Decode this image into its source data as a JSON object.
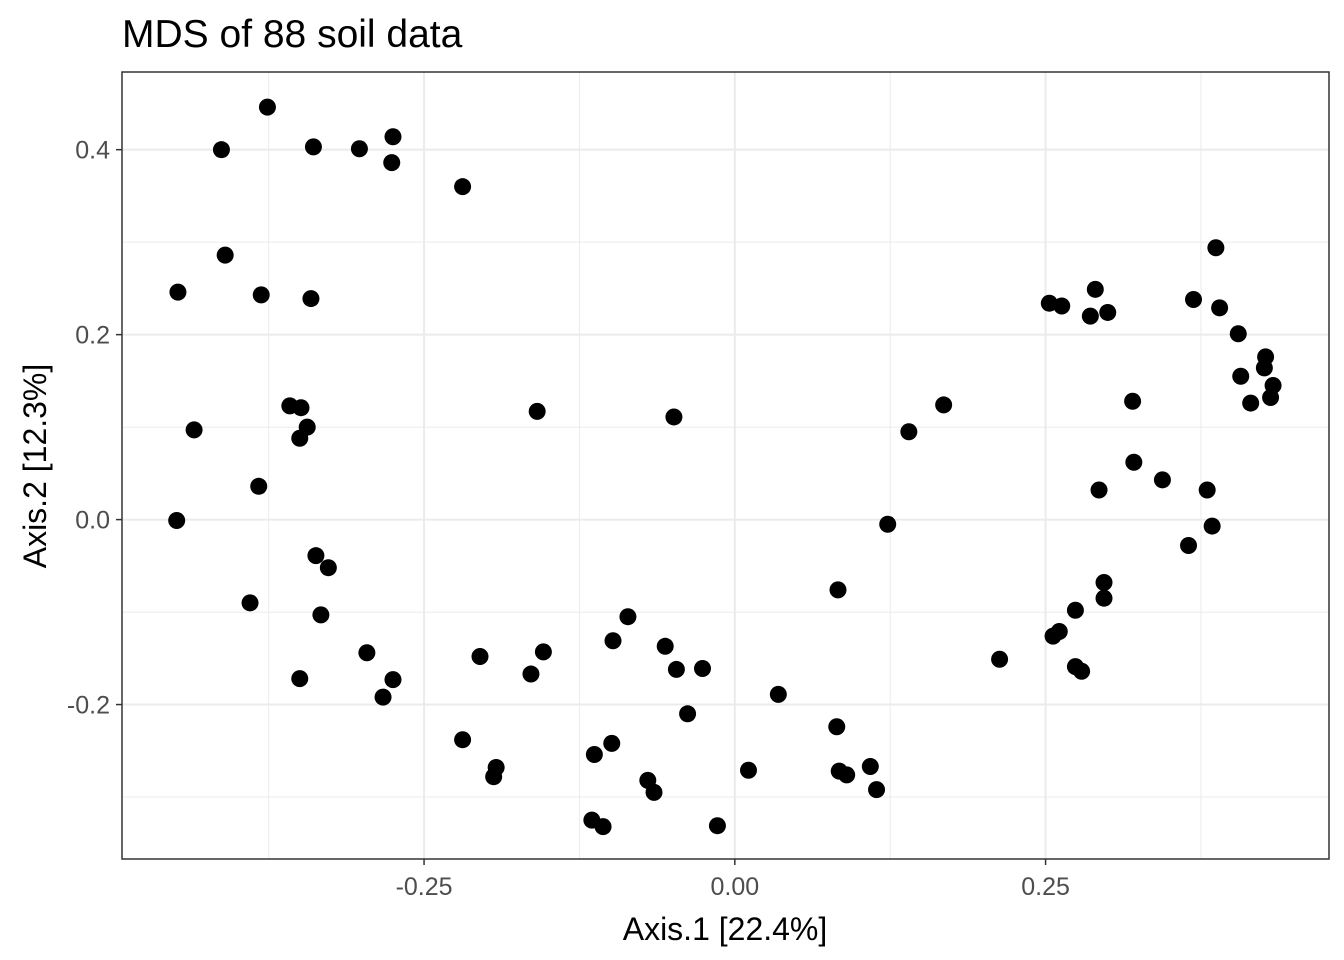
{
  "chart_data": {
    "type": "scatter",
    "title": "MDS of 88 soil data",
    "xlabel": "Axis.1   [22.4%]",
    "ylabel": "Axis.2   [12.3%]",
    "xlim": [
      -0.493,
      0.478
    ],
    "ylim": [
      -0.367,
      0.484
    ],
    "x_ticks": [
      -0.25,
      0.0,
      0.25
    ],
    "x_tick_labels": [
      "-0.25",
      "0.00",
      "0.25"
    ],
    "y_ticks": [
      -0.2,
      0.0,
      0.2,
      0.4
    ],
    "y_tick_labels": [
      "-0.2",
      "0.0",
      "0.2",
      "0.4"
    ],
    "x_minor_grid": [
      -0.375,
      -0.125,
      0.125,
      0.375
    ],
    "y_minor_grid": [
      -0.3,
      -0.1,
      0.1,
      0.3
    ],
    "grid": true,
    "legend": "none",
    "colors": {
      "points": "#000000",
      "grid": "#ebebeb",
      "panel_border": "#333333",
      "tick_label": "#4d4d4d"
    },
    "points": [
      {
        "x": -0.376,
        "y": 0.446
      },
      {
        "x": -0.413,
        "y": 0.4
      },
      {
        "x": -0.339,
        "y": 0.403
      },
      {
        "x": -0.302,
        "y": 0.401
      },
      {
        "x": -0.275,
        "y": 0.414
      },
      {
        "x": -0.276,
        "y": 0.386
      },
      {
        "x": -0.219,
        "y": 0.36
      },
      {
        "x": -0.41,
        "y": 0.286
      },
      {
        "x": -0.448,
        "y": 0.246
      },
      {
        "x": -0.381,
        "y": 0.243
      },
      {
        "x": -0.341,
        "y": 0.239
      },
      {
        "x": -0.358,
        "y": 0.123
      },
      {
        "x": -0.349,
        "y": 0.121
      },
      {
        "x": -0.344,
        "y": 0.1
      },
      {
        "x": -0.35,
        "y": 0.088
      },
      {
        "x": -0.435,
        "y": 0.097
      },
      {
        "x": -0.383,
        "y": 0.036
      },
      {
        "x": -0.449,
        "y": -0.001
      },
      {
        "x": -0.337,
        "y": -0.039
      },
      {
        "x": -0.327,
        "y": -0.052
      },
      {
        "x": -0.39,
        "y": -0.09
      },
      {
        "x": -0.333,
        "y": -0.103
      },
      {
        "x": -0.296,
        "y": -0.144
      },
      {
        "x": -0.35,
        "y": -0.172
      },
      {
        "x": -0.275,
        "y": -0.173
      },
      {
        "x": -0.283,
        "y": -0.192
      },
      {
        "x": -0.219,
        "y": -0.238
      },
      {
        "x": -0.205,
        "y": -0.148
      },
      {
        "x": -0.192,
        "y": -0.268
      },
      {
        "x": -0.194,
        "y": -0.278
      },
      {
        "x": -0.159,
        "y": 0.117
      },
      {
        "x": -0.154,
        "y": -0.143
      },
      {
        "x": -0.164,
        "y": -0.167
      },
      {
        "x": -0.113,
        "y": -0.254
      },
      {
        "x": -0.099,
        "y": -0.242
      },
      {
        "x": -0.098,
        "y": -0.131
      },
      {
        "x": -0.086,
        "y": -0.105
      },
      {
        "x": -0.115,
        "y": -0.325
      },
      {
        "x": -0.106,
        "y": -0.332
      },
      {
        "x": -0.07,
        "y": -0.282
      },
      {
        "x": -0.065,
        "y": -0.295
      },
      {
        "x": -0.056,
        "y": -0.137
      },
      {
        "x": -0.047,
        "y": -0.162
      },
      {
        "x": -0.038,
        "y": -0.21
      },
      {
        "x": -0.049,
        "y": 0.111
      },
      {
        "x": -0.026,
        "y": -0.161
      },
      {
        "x": -0.014,
        "y": -0.331
      },
      {
        "x": 0.011,
        "y": -0.271
      },
      {
        "x": 0.035,
        "y": -0.189
      },
      {
        "x": 0.083,
        "y": -0.076
      },
      {
        "x": 0.082,
        "y": -0.224
      },
      {
        "x": 0.084,
        "y": -0.272
      },
      {
        "x": 0.09,
        "y": -0.276
      },
      {
        "x": 0.109,
        "y": -0.267
      },
      {
        "x": 0.114,
        "y": -0.292
      },
      {
        "x": 0.123,
        "y": -0.005
      },
      {
        "x": 0.14,
        "y": 0.095
      },
      {
        "x": 0.168,
        "y": 0.124
      },
      {
        "x": 0.213,
        "y": -0.151
      },
      {
        "x": 0.253,
        "y": 0.234
      },
      {
        "x": 0.263,
        "y": 0.231
      },
      {
        "x": 0.29,
        "y": 0.249
      },
      {
        "x": 0.286,
        "y": 0.22
      },
      {
        "x": 0.3,
        "y": 0.224
      },
      {
        "x": 0.256,
        "y": -0.126
      },
      {
        "x": 0.261,
        "y": -0.121
      },
      {
        "x": 0.274,
        "y": -0.098
      },
      {
        "x": 0.274,
        "y": -0.159
      },
      {
        "x": 0.279,
        "y": -0.164
      },
      {
        "x": 0.297,
        "y": -0.068
      },
      {
        "x": 0.297,
        "y": -0.085
      },
      {
        "x": 0.293,
        "y": 0.032
      },
      {
        "x": 0.32,
        "y": 0.128
      },
      {
        "x": 0.321,
        "y": 0.062
      },
      {
        "x": 0.344,
        "y": 0.043
      },
      {
        "x": 0.365,
        "y": -0.028
      },
      {
        "x": 0.38,
        "y": 0.032
      },
      {
        "x": 0.384,
        "y": -0.007
      },
      {
        "x": 0.387,
        "y": 0.294
      },
      {
        "x": 0.369,
        "y": 0.238
      },
      {
        "x": 0.39,
        "y": 0.229
      },
      {
        "x": 0.405,
        "y": 0.201
      },
      {
        "x": 0.407,
        "y": 0.155
      },
      {
        "x": 0.415,
        "y": 0.126
      },
      {
        "x": 0.427,
        "y": 0.176
      },
      {
        "x": 0.426,
        "y": 0.164
      },
      {
        "x": 0.431,
        "y": 0.132
      },
      {
        "x": 0.433,
        "y": 0.145
      }
    ]
  }
}
